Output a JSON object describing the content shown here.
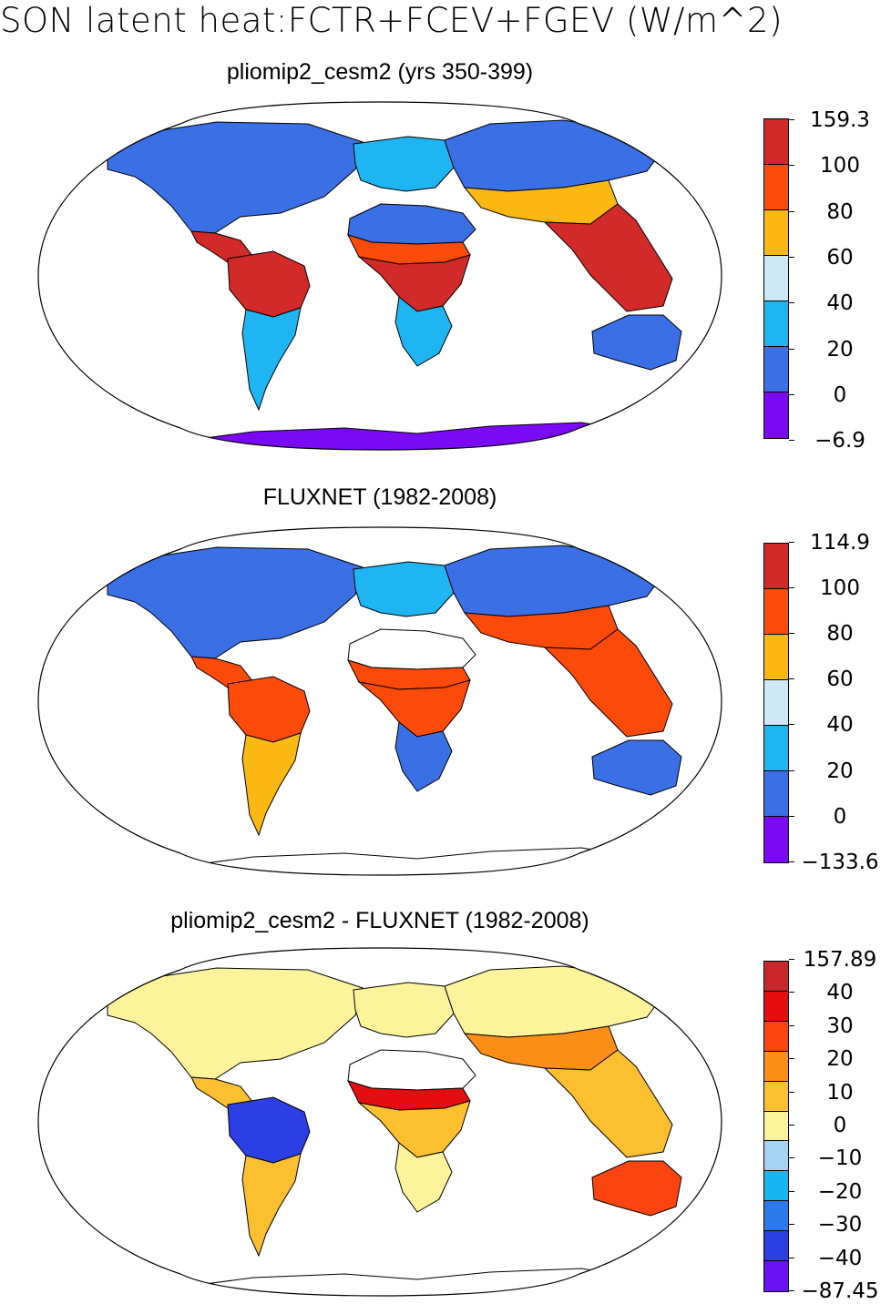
{
  "title": "SON latent heat:FCTR+FCEV+FGEV (W/m^2)",
  "colors": {
    "ocean": "#ffffff",
    "outline": "#000000",
    "abs_scale": [
      "#7a0af5",
      "#3a6fe6",
      "#1fb4f2",
      "#cce8f6",
      "#fbb712",
      "#fc4a0b",
      "#d12a28"
    ],
    "diff_scale": [
      "#6a12f2",
      "#2c3fe4",
      "#2c79ec",
      "#1ab6f4",
      "#a4d4f1",
      "#fdf39a",
      "#fbbf2f",
      "#fb8e17",
      "#fb4410",
      "#e40d10",
      "#c8262b"
    ]
  },
  "panels": [
    {
      "title": "pliomip2_cesm2 (yrs 350-399)",
      "colorbar": [
        "159.3",
        "100",
        "80",
        "60",
        "40",
        "20",
        "0",
        "−6.9"
      ],
      "regions": {
        "north_america": "#3a6fe6",
        "central_america": "#d12a28",
        "amazon": "#d12a28",
        "south_america_south": "#1fb4f2",
        "europe": "#1fb4f2",
        "sahara": "#3a6fe6",
        "sahel": "#fc4a0b",
        "central_africa": "#d12a28",
        "southern_africa": "#1fb4f2",
        "siberia": "#3a6fe6",
        "south_asia": "#fbb712",
        "southeast_asia": "#d12a28",
        "australia": "#3a6fe6",
        "antarctica": "#7a0af5"
      }
    },
    {
      "title": "FLUXNET (1982-2008)",
      "colorbar": [
        "114.9",
        "100",
        "80",
        "60",
        "40",
        "20",
        "0",
        "−133.6"
      ],
      "regions": {
        "north_america": "#3a6fe6",
        "central_america": "#fc4a0b",
        "amazon": "#fc4a0b",
        "south_america_south": "#fbb712",
        "europe": "#1fb4f2",
        "sahara": "#ffffff",
        "sahel": "#fc4a0b",
        "central_africa": "#fc4a0b",
        "southern_africa": "#3a6fe6",
        "siberia": "#3a6fe6",
        "south_asia": "#fc4a0b",
        "southeast_asia": "#fc4a0b",
        "australia": "#3a6fe6",
        "antarctica": "#ffffff"
      }
    },
    {
      "title": "pliomip2_cesm2 - FLUXNET (1982-2008)",
      "colorbar": [
        "157.89",
        "40",
        "30",
        "20",
        "10",
        "0",
        "−10",
        "−20",
        "−30",
        "−40",
        "−87.45"
      ],
      "regions": {
        "north_america": "#fdf39a",
        "central_america": "#fbbf2f",
        "amazon": "#2c3fe4",
        "south_america_south": "#fbbf2f",
        "europe": "#fdf39a",
        "sahara": "#ffffff",
        "sahel": "#e40d10",
        "central_africa": "#fbbf2f",
        "southern_africa": "#fdf39a",
        "siberia": "#fdf39a",
        "south_asia": "#fb8e17",
        "southeast_asia": "#fbbf2f",
        "australia": "#fb4410",
        "antarctica": "#ffffff"
      }
    }
  ]
}
